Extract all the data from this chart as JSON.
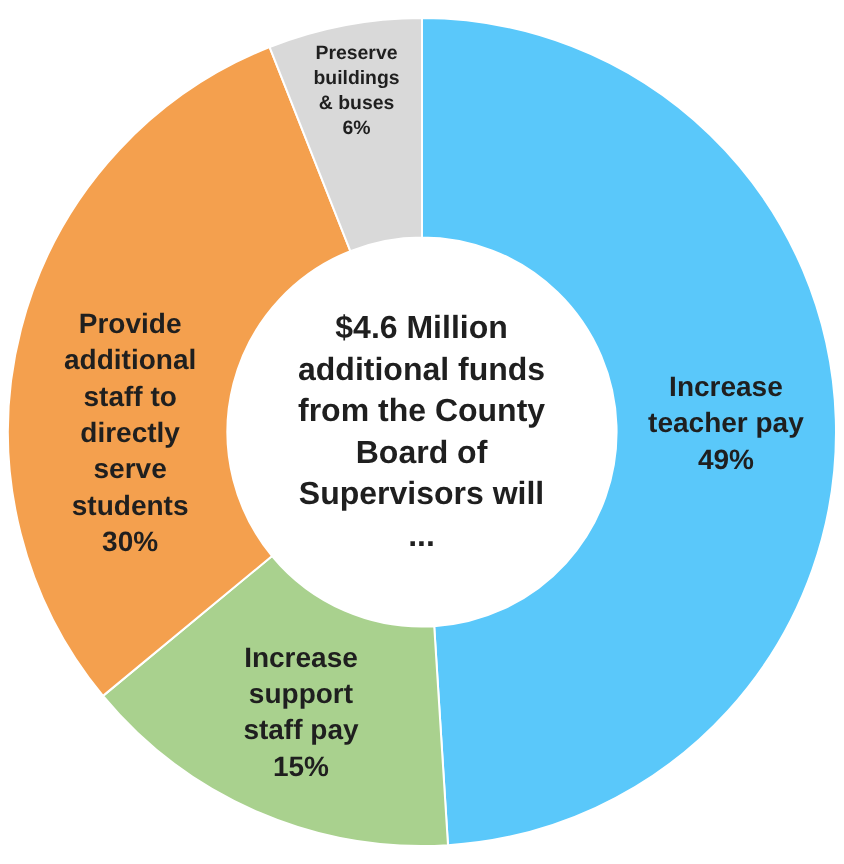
{
  "chart_data": {
    "type": "donut",
    "title": "$4.6 Million additional funds from the County Board of Supervisors will ...",
    "categories": [
      "Increase teacher pay",
      "Increase support staff pay",
      "Provide additional staff to directly serve students",
      "Preserve buildings & buses"
    ],
    "values": [
      49,
      15,
      30,
      6
    ],
    "colors": [
      "#5ac8fa",
      "#a9d18e",
      "#f4a04e",
      "#d9d9d9"
    ],
    "value_labels": [
      "49%",
      "15%",
      "30%",
      "6%"
    ],
    "legend": false
  }
}
